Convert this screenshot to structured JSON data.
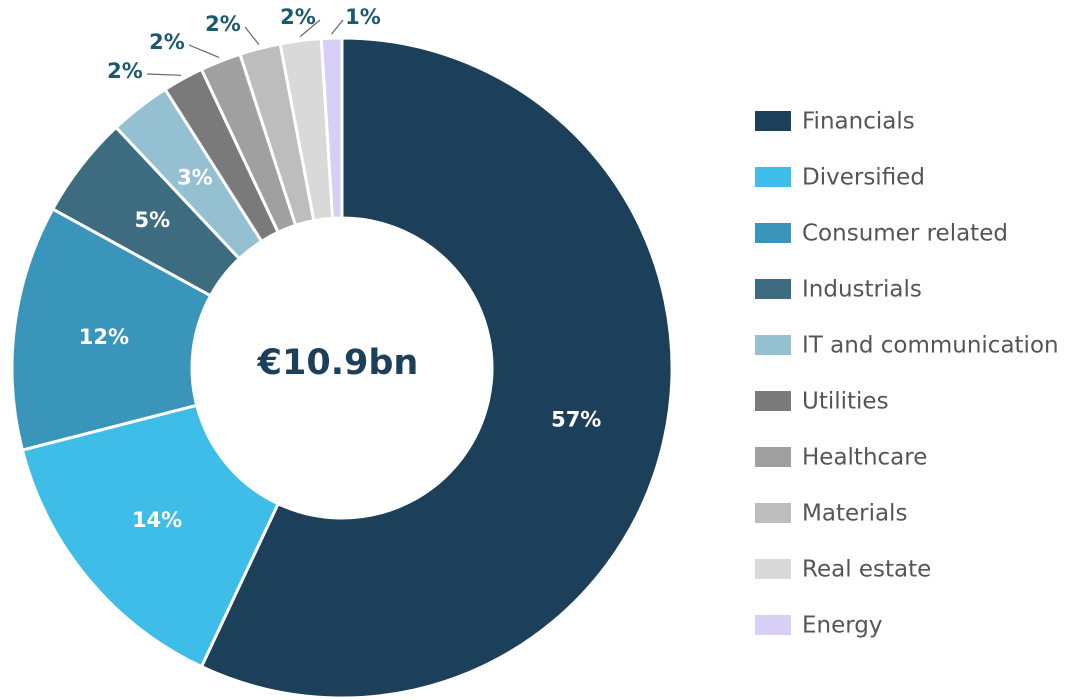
{
  "chart_data": {
    "type": "donut",
    "center_label": "€10.9bn",
    "categories": [
      "Financials",
      "Diversified",
      "Consumer related",
      "Industrials",
      "IT and communication",
      "Utilities",
      "Healthcare",
      "Materials",
      "Real estate",
      "Energy"
    ],
    "values": [
      57,
      14,
      12,
      5,
      3,
      2,
      2,
      2,
      2,
      1
    ],
    "value_labels": [
      "57%",
      "14%",
      "12%",
      "5%",
      "3%",
      "2%",
      "2%",
      "2%",
      "2%",
      "1%"
    ],
    "colors": [
      "#1c3f5a",
      "#3fbde9",
      "#3a95bb",
      "#3d6b80",
      "#94c0d2",
      "#7a7a7a",
      "#a0a0a0",
      "#bdbdbd",
      "#d9d9d9",
      "#d8cff7"
    ],
    "legend": "right"
  }
}
